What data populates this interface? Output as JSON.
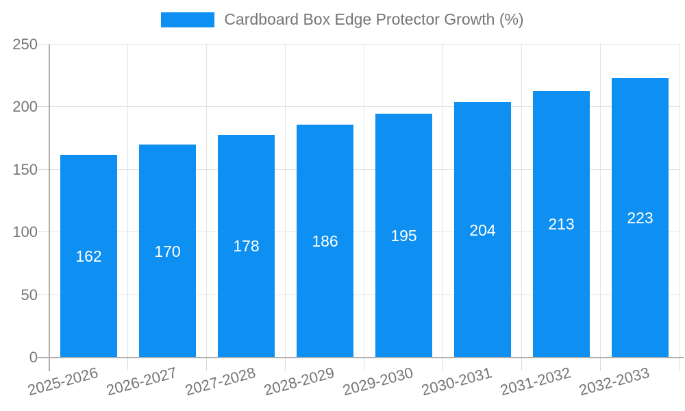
{
  "chart_data": {
    "type": "bar",
    "title": "Cardboard Box Edge Protector Growth (%)",
    "categories": [
      "2025-2026",
      "2026-2027",
      "2027-2028",
      "2028-2029",
      "2029-2030",
      "2030-2031",
      "2031-2032",
      "2032-2033"
    ],
    "values": [
      162,
      170,
      178,
      186,
      195,
      204,
      213,
      223
    ],
    "xlabel": "",
    "ylabel": "",
    "ylim": [
      0,
      250
    ],
    "yticks": [
      0,
      50,
      100,
      150,
      200,
      250
    ],
    "grid": true,
    "legend_position": "top-center",
    "bar_color": "#0d90f2",
    "value_label_color": "#ffffff",
    "axis_text_color": "#757575",
    "grid_color": "#e3e3e3",
    "tick_color": "#d9d9d9",
    "axis_line_color": "#aeaeae",
    "background_color": "#ffffff"
  }
}
